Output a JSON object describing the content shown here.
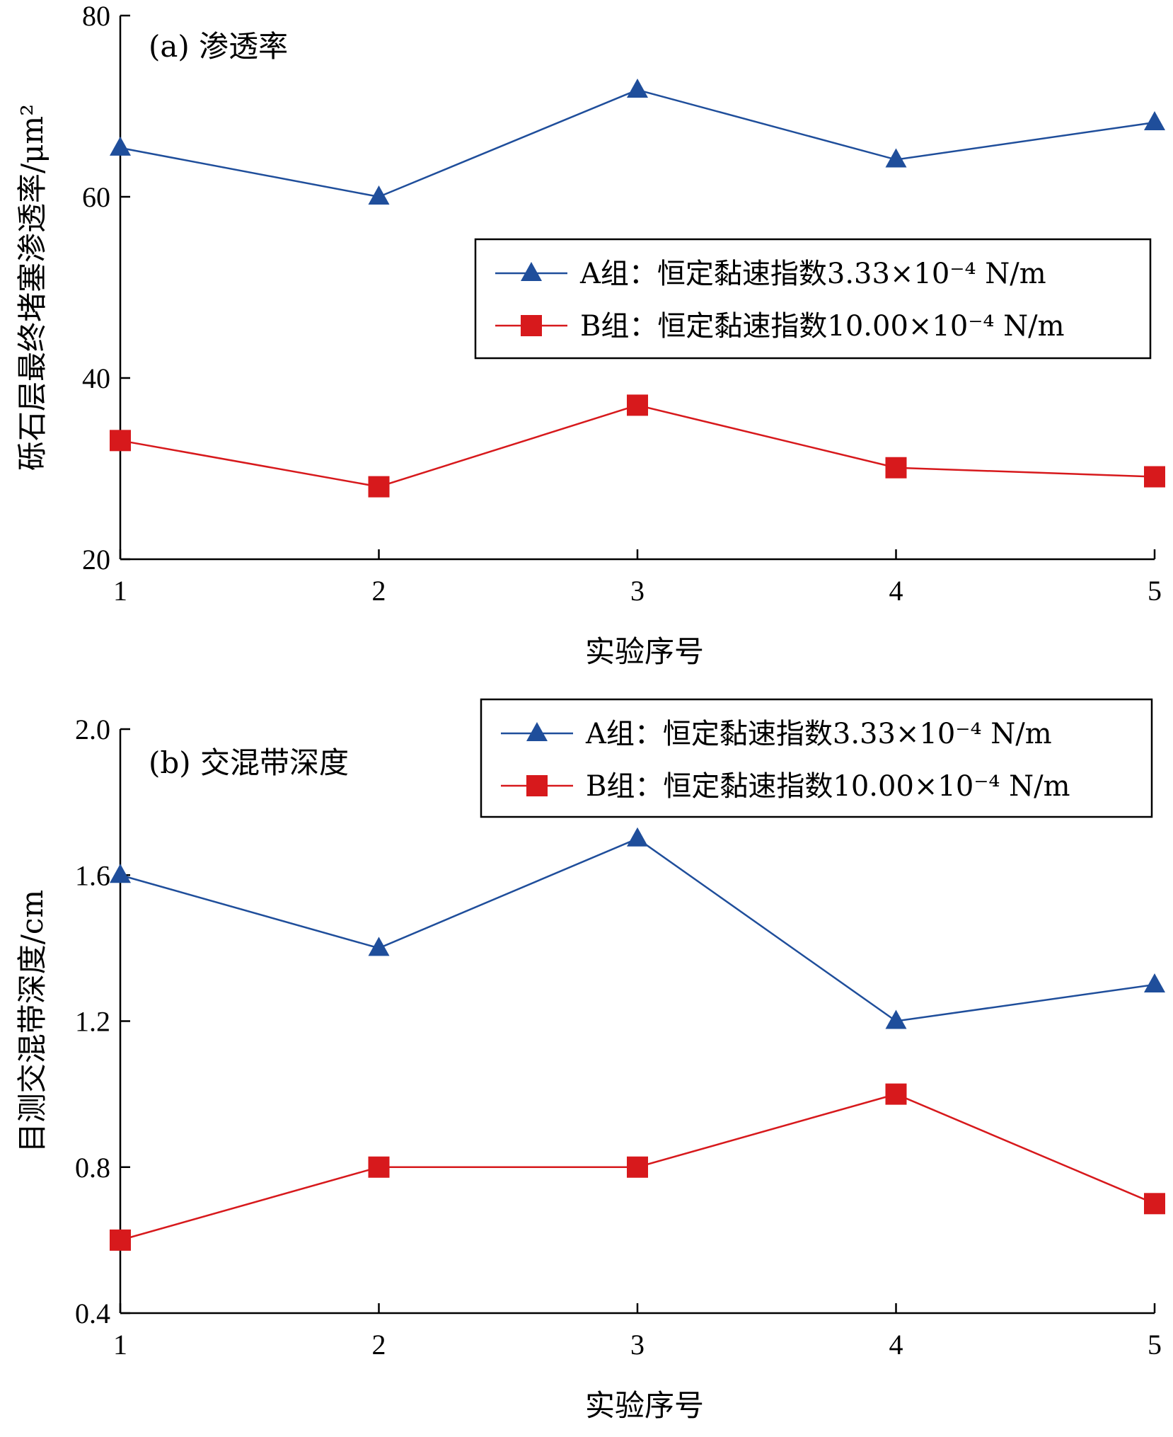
{
  "chart_data": [
    {
      "type": "line",
      "title": "(a) 渗透率",
      "xlabel": "实验序号",
      "ylabel": "砾石层最终堵塞渗透率/μm²",
      "x": [
        1,
        2,
        3,
        4,
        5
      ],
      "xticks": [
        "1",
        "2",
        "3",
        "4",
        "5"
      ],
      "yticks": [
        "20",
        "40",
        "60",
        "80"
      ],
      "xlim": [
        1,
        5
      ],
      "ylim": [
        20,
        80
      ],
      "grid": false,
      "legend_position": "center-right",
      "series": [
        {
          "name": "A组：恒定黏速指数3.33×10⁻⁴ N/m",
          "color": "#1f4e9b",
          "marker": "triangle",
          "values": [
            65.4,
            60.0,
            71.8,
            64.1,
            68.2
          ]
        },
        {
          "name": "B组：恒定黏速指数10.00×10⁻⁴ N/m",
          "color": "#d7191c",
          "marker": "square",
          "values": [
            33.1,
            28.0,
            37.0,
            30.1,
            29.1
          ]
        }
      ]
    },
    {
      "type": "line",
      "title": "(b) 交混带深度",
      "xlabel": "实验序号",
      "ylabel": "目测交混带深度/cm",
      "x": [
        1,
        2,
        3,
        4,
        5
      ],
      "xticks": [
        "1",
        "2",
        "3",
        "4",
        "5"
      ],
      "yticks": [
        "0.4",
        "0.8",
        "1.2",
        "1.6",
        "2.0"
      ],
      "xlim": [
        1,
        5
      ],
      "ylim": [
        0.4,
        2.0
      ],
      "grid": false,
      "legend_position": "top-right",
      "series": [
        {
          "name": "A组：恒定黏速指数3.33×10⁻⁴ N/m",
          "color": "#1f4e9b",
          "marker": "triangle",
          "values": [
            1.6,
            1.4,
            1.7,
            1.2,
            1.3
          ]
        },
        {
          "name": "B组：恒定黏速指数10.00×10⁻⁴ N/m",
          "color": "#d7191c",
          "marker": "square",
          "values": [
            0.6,
            0.8,
            0.8,
            1.0,
            0.7
          ]
        }
      ]
    }
  ]
}
